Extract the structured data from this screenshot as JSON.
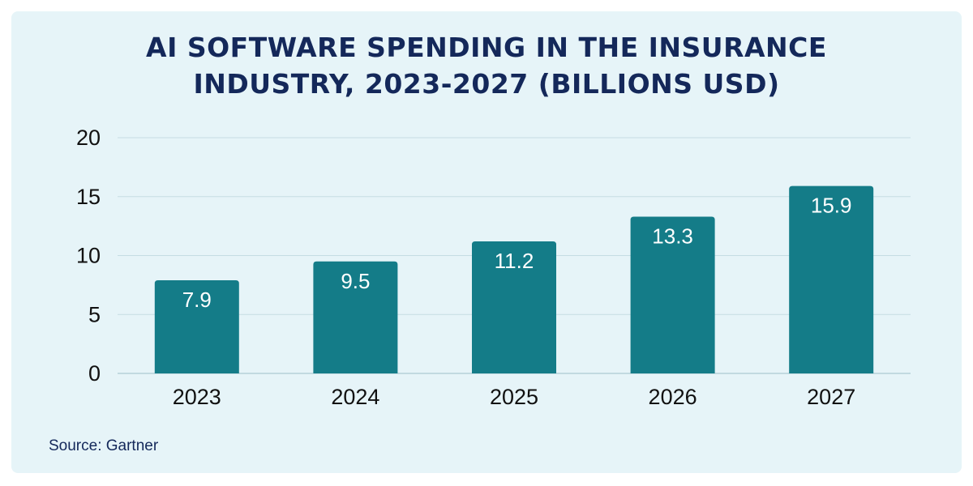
{
  "chart_data": {
    "type": "bar",
    "title_lines": [
      "AI SOFTWARE SPENDING IN THE INSURANCE",
      "INDUSTRY, 2023-2027 (BILLIONS USD)"
    ],
    "categories": [
      "2023",
      "2024",
      "2025",
      "2026",
      "2027"
    ],
    "values": [
      7.9,
      9.5,
      11.2,
      13.3,
      15.9
    ],
    "value_labels": [
      "7.9",
      "9.5",
      "11.2",
      "13.3",
      "15.9"
    ],
    "yticks": [
      0,
      5,
      10,
      15,
      20
    ],
    "ylim": [
      0,
      20
    ],
    "xlabel": "",
    "ylabel": "",
    "grid": true,
    "bar_color": "#147c88",
    "grid_color": "#c5dde3"
  },
  "footer": {
    "source": "Source: Gartner"
  },
  "colors": {
    "background": "#e6f4f8",
    "title": "#14285a"
  }
}
